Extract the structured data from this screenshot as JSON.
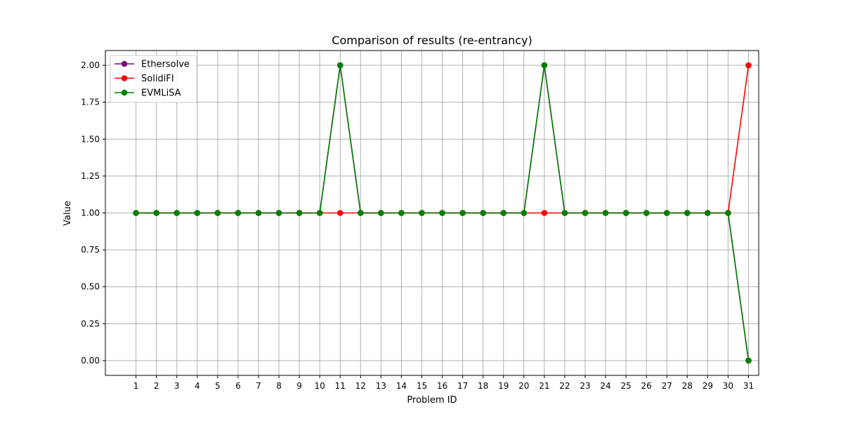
{
  "chart_data": {
    "type": "line",
    "title": "Comparison of results (re-entrancy)",
    "xlabel": "Problem ID",
    "ylabel": "Value",
    "x": [
      1,
      2,
      3,
      4,
      5,
      6,
      7,
      8,
      9,
      10,
      11,
      12,
      13,
      14,
      15,
      16,
      17,
      18,
      19,
      20,
      21,
      22,
      23,
      24,
      25,
      26,
      27,
      28,
      29,
      30,
      31
    ],
    "xlim": [
      -0.5,
      31.5
    ],
    "ylim": [
      -0.1,
      2.1
    ],
    "yticks": [
      0.0,
      0.25,
      0.5,
      0.75,
      1.0,
      1.25,
      1.5,
      1.75,
      2.0
    ],
    "ytick_labels": [
      "0.00",
      "0.25",
      "0.50",
      "0.75",
      "1.00",
      "1.25",
      "1.50",
      "1.75",
      "2.00"
    ],
    "grid": true,
    "legend_position": "top-left",
    "series": [
      {
        "name": "Ethersolve",
        "color": "#800080",
        "values": [
          1,
          1,
          1,
          1,
          1,
          1,
          1,
          1,
          1,
          1,
          2,
          1,
          1,
          1,
          1,
          1,
          1,
          1,
          1,
          1,
          2,
          1,
          1,
          1,
          1,
          1,
          1,
          1,
          1,
          1,
          0
        ]
      },
      {
        "name": "SolidiFI",
        "color": "#ff0000",
        "values": [
          1,
          1,
          1,
          1,
          1,
          1,
          1,
          1,
          1,
          1,
          1,
          1,
          1,
          1,
          1,
          1,
          1,
          1,
          1,
          1,
          1,
          1,
          1,
          1,
          1,
          1,
          1,
          1,
          1,
          1,
          2
        ]
      },
      {
        "name": "EVMLiSA",
        "color": "#008000",
        "values": [
          1,
          1,
          1,
          1,
          1,
          1,
          1,
          1,
          1,
          1,
          2,
          1,
          1,
          1,
          1,
          1,
          1,
          1,
          1,
          1,
          2,
          1,
          1,
          1,
          1,
          1,
          1,
          1,
          1,
          1,
          0
        ]
      }
    ]
  }
}
